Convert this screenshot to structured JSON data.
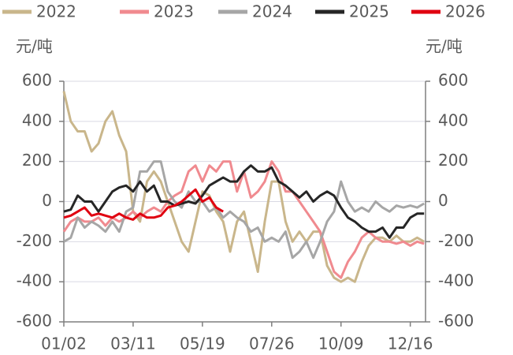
{
  "chart_data": {
    "type": "line",
    "y_label": "元/吨",
    "y2_label": "元/吨",
    "categories": [
      "01/02",
      null,
      null,
      null,
      null,
      null,
      null,
      null,
      null,
      null,
      "03/11",
      null,
      null,
      null,
      null,
      null,
      null,
      null,
      null,
      null,
      "05/19",
      null,
      null,
      null,
      null,
      null,
      null,
      null,
      null,
      null,
      "07/26",
      null,
      null,
      null,
      null,
      null,
      null,
      null,
      null,
      null,
      "10/09",
      null,
      null,
      null,
      null,
      null,
      null,
      null,
      null,
      null,
      "12/16",
      null,
      null
    ],
    "ylim": [
      -600,
      600
    ],
    "yticks": [
      -600,
      -400,
      -200,
      0,
      200,
      400,
      600
    ],
    "y2lim": [
      -600,
      600
    ],
    "y2ticks": [
      -600,
      -400,
      -200,
      0,
      200,
      400,
      600
    ],
    "grid": true,
    "series": [
      {
        "name": "2022",
        "color": "#c9b68b",
        "values": [
          550,
          400,
          350,
          350,
          250,
          290,
          400,
          450,
          330,
          250,
          -50,
          -100,
          100,
          150,
          100,
          0,
          -100,
          -200,
          -250,
          -100,
          50,
          30,
          -50,
          -100,
          -250,
          -100,
          -50,
          -200,
          -350,
          -100,
          100,
          100,
          -100,
          -200,
          -150,
          -200,
          -150,
          -150,
          -320,
          -380,
          -400,
          -380,
          -400,
          -300,
          -220,
          -180,
          -180,
          -200,
          -170,
          -200,
          -200,
          -180,
          -200
        ]
      },
      {
        "name": "2023",
        "color": "#f08a8f",
        "values": [
          -150,
          -100,
          -80,
          -100,
          -100,
          -80,
          -120,
          -80,
          -100,
          -80,
          -50,
          -80,
          -50,
          -30,
          -50,
          0,
          30,
          50,
          150,
          180,
          100,
          180,
          150,
          200,
          200,
          50,
          150,
          20,
          50,
          100,
          200,
          150,
          50,
          50,
          0,
          -50,
          -100,
          -150,
          -250,
          -350,
          -380,
          -300,
          -250,
          -180,
          -150,
          -180,
          -200,
          -200,
          -210,
          -200,
          -220,
          -200,
          -210
        ]
      },
      {
        "name": "2024",
        "color": "#a6a6a6",
        "values": [
          -200,
          -180,
          -80,
          -130,
          -100,
          -120,
          -150,
          -100,
          -150,
          -50,
          -30,
          150,
          150,
          200,
          200,
          50,
          0,
          -30,
          50,
          0,
          0,
          -50,
          -30,
          -80,
          -50,
          -80,
          -100,
          -150,
          -130,
          -200,
          -180,
          -200,
          -150,
          -280,
          -250,
          -200,
          -280,
          -200,
          -100,
          -50,
          100,
          0,
          -50,
          -30,
          -50,
          0,
          -30,
          -50,
          -20,
          -30,
          -20,
          -30,
          -10
        ]
      },
      {
        "name": "2025",
        "color": "#262626",
        "values": [
          -50,
          -40,
          30,
          0,
          0,
          -50,
          0,
          50,
          70,
          80,
          50,
          100,
          50,
          80,
          0,
          0,
          -20,
          -10,
          0,
          -10,
          30,
          80,
          100,
          120,
          100,
          100,
          150,
          180,
          150,
          150,
          170,
          100,
          80,
          50,
          20,
          50,
          0,
          30,
          50,
          30,
          -30,
          -80,
          -100,
          -130,
          -150,
          -150,
          -130,
          -180,
          -130,
          -130,
          -80,
          -60,
          -60
        ]
      },
      {
        "name": "2026",
        "color": "#e00010",
        "values": [
          -80,
          -70,
          -50,
          -30,
          -70,
          -60,
          -70,
          -80,
          -60,
          -80,
          -90,
          -60,
          -80,
          -80,
          -70,
          -30,
          -20,
          0,
          30,
          60,
          0,
          20,
          -30,
          -50,
          null,
          null,
          null,
          null,
          null,
          null,
          null,
          null,
          null,
          null,
          null,
          null,
          null,
          null,
          null,
          null,
          null,
          null,
          null,
          null,
          null,
          null,
          null,
          null,
          null,
          null,
          null,
          null,
          null
        ]
      }
    ]
  }
}
